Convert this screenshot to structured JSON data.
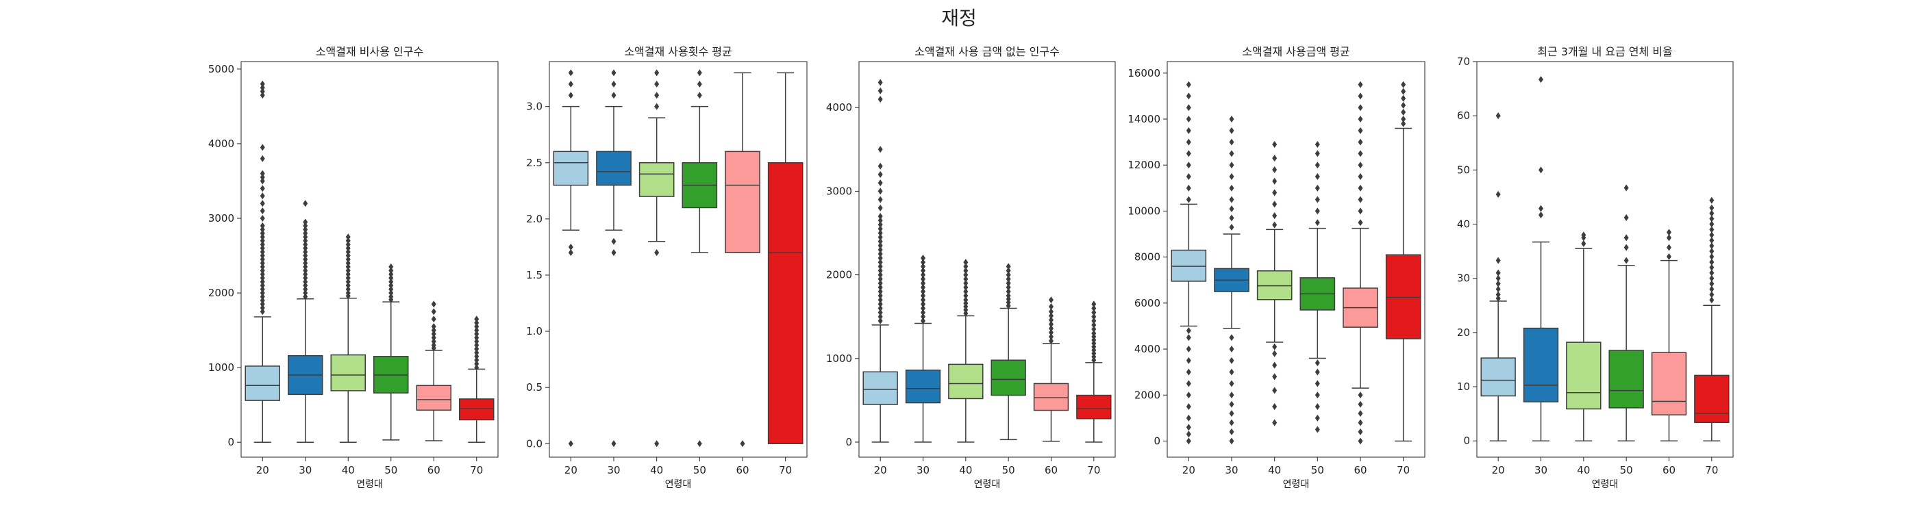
{
  "suptitle": "재정",
  "palette": [
    "#a6cee3",
    "#1f78b4",
    "#b2df8a",
    "#33a02c",
    "#fb9a99",
    "#e31a1c"
  ],
  "chart_data": [
    {
      "type": "box",
      "title": "소액결재 비사용 인구수",
      "xlabel": "연령대",
      "ylabel": "",
      "categories": [
        "20",
        "30",
        "40",
        "50",
        "60",
        "70"
      ],
      "ylim": [
        -200,
        5100
      ],
      "yticks": [
        0,
        1000,
        2000,
        3000,
        4000,
        5000
      ],
      "boxes": [
        {
          "whislo": 0,
          "q1": 560,
          "med": 760,
          "q3": 1020,
          "whishi": 1680,
          "fliers": [
            1750,
            1800,
            1850,
            1900,
            1950,
            2000,
            2050,
            2100,
            2150,
            2200,
            2250,
            2300,
            2350,
            2400,
            2450,
            2500,
            2550,
            2600,
            2650,
            2700,
            2750,
            2800,
            2850,
            2900,
            3000,
            3100,
            3200,
            3300,
            3400,
            3500,
            3550,
            3600,
            3800,
            3950,
            4650,
            4700,
            4750,
            4800
          ]
        },
        {
          "whislo": 0,
          "q1": 640,
          "med": 900,
          "q3": 1160,
          "whishi": 1920,
          "fliers": [
            1950,
            2000,
            2050,
            2100,
            2150,
            2200,
            2250,
            2300,
            2350,
            2400,
            2450,
            2500,
            2550,
            2600,
            2650,
            2700,
            2750,
            2800,
            2850,
            2900,
            2950,
            3200
          ]
        },
        {
          "whislo": 0,
          "q1": 690,
          "med": 900,
          "q3": 1170,
          "whishi": 1930,
          "fliers": [
            1960,
            2000,
            2050,
            2100,
            2150,
            2200,
            2250,
            2300,
            2350,
            2400,
            2450,
            2500,
            2550,
            2600,
            2650,
            2700,
            2750
          ]
        },
        {
          "whislo": 30,
          "q1": 660,
          "med": 900,
          "q3": 1150,
          "whishi": 1880,
          "fliers": [
            1910,
            1950,
            2000,
            2050,
            2100,
            2150,
            2200,
            2250,
            2300,
            2350
          ]
        },
        {
          "whislo": 20,
          "q1": 430,
          "med": 570,
          "q3": 760,
          "whishi": 1230,
          "fliers": [
            1260,
            1300,
            1350,
            1400,
            1450,
            1500,
            1550,
            1650,
            1750,
            1850
          ]
        },
        {
          "whislo": 0,
          "q1": 300,
          "med": 450,
          "q3": 580,
          "whishi": 980,
          "fliers": [
            1000,
            1050,
            1100,
            1150,
            1200,
            1250,
            1300,
            1350,
            1400,
            1450,
            1500,
            1550,
            1600,
            1650
          ]
        }
      ]
    },
    {
      "type": "box",
      "title": "소액결재 사용횟수 평균",
      "xlabel": "연령대",
      "ylabel": "",
      "categories": [
        "20",
        "30",
        "40",
        "50",
        "60",
        "70"
      ],
      "ylim": [
        -0.12,
        3.4
      ],
      "yticks": [
        "0.0",
        "0.5",
        "1.0",
        "1.5",
        "2.0",
        "2.5",
        "3.0"
      ],
      "boxes": [
        {
          "whislo": 1.9,
          "q1": 2.3,
          "med": 2.5,
          "q3": 2.6,
          "whishi": 3.0,
          "fliers": [
            0.0,
            1.7,
            1.75,
            3.1,
            3.2,
            3.3
          ]
        },
        {
          "whislo": 1.9,
          "q1": 2.3,
          "med": 2.42,
          "q3": 2.6,
          "whishi": 3.0,
          "fliers": [
            0.0,
            1.7,
            1.8,
            3.1,
            3.2,
            3.3
          ]
        },
        {
          "whislo": 1.8,
          "q1": 2.2,
          "med": 2.4,
          "q3": 2.5,
          "whishi": 2.9,
          "fliers": [
            0.0,
            1.7,
            3.0,
            3.1,
            3.2,
            3.3
          ]
        },
        {
          "whislo": 1.7,
          "q1": 2.1,
          "med": 2.3,
          "q3": 2.5,
          "whishi": 3.0,
          "fliers": [
            0.0,
            3.1,
            3.2,
            3.3
          ]
        },
        {
          "whislo": 1.7,
          "q1": 1.7,
          "med": 2.3,
          "q3": 2.6,
          "whishi": 3.3,
          "fliers": [
            0.0
          ]
        },
        {
          "whislo": 0.0,
          "q1": 0.0,
          "med": 1.7,
          "q3": 2.5,
          "whishi": 3.3,
          "fliers": []
        }
      ]
    },
    {
      "type": "box",
      "title": "소액결재 사용 금액 없는 인구수",
      "xlabel": "연령대",
      "ylabel": "",
      "categories": [
        "20",
        "30",
        "40",
        "50",
        "60",
        "70"
      ],
      "ylim": [
        -180,
        4550
      ],
      "yticks": [
        0,
        1000,
        2000,
        3000,
        4000
      ],
      "boxes": [
        {
          "whislo": 0,
          "q1": 450,
          "med": 630,
          "q3": 840,
          "whishi": 1400,
          "fliers": [
            1450,
            1500,
            1550,
            1600,
            1650,
            1700,
            1750,
            1800,
            1850,
            1900,
            1950,
            2000,
            2050,
            2100,
            2150,
            2200,
            2250,
            2300,
            2350,
            2400,
            2450,
            2500,
            2550,
            2600,
            2650,
            2700,
            2800,
            2900,
            3000,
            3100,
            3200,
            3300,
            3500,
            4100,
            4200,
            4300
          ]
        },
        {
          "whislo": 0,
          "q1": 470,
          "med": 640,
          "q3": 860,
          "whishi": 1420,
          "fliers": [
            1450,
            1500,
            1550,
            1600,
            1650,
            1700,
            1750,
            1800,
            1850,
            1900,
            1950,
            2000,
            2050,
            2100,
            2150,
            2200
          ]
        },
        {
          "whislo": 0,
          "q1": 520,
          "med": 700,
          "q3": 930,
          "whishi": 1510,
          "fliers": [
            1540,
            1580,
            1620,
            1660,
            1700,
            1750,
            1800,
            1850,
            1900,
            1950,
            2000,
            2050,
            2100,
            2150
          ]
        },
        {
          "whislo": 30,
          "q1": 560,
          "med": 750,
          "q3": 980,
          "whishi": 1600,
          "fliers": [
            1630,
            1670,
            1710,
            1750,
            1800,
            1850,
            1900,
            1950,
            2000,
            2050,
            2100
          ]
        },
        {
          "whislo": 10,
          "q1": 380,
          "med": 530,
          "q3": 700,
          "whishi": 1180,
          "fliers": [
            1210,
            1260,
            1310,
            1360,
            1410,
            1460,
            1510,
            1560,
            1620,
            1700
          ]
        },
        {
          "whislo": 0,
          "q1": 280,
          "med": 400,
          "q3": 560,
          "whishi": 950,
          "fliers": [
            980,
            1020,
            1060,
            1100,
            1140,
            1180,
            1220,
            1260,
            1300,
            1350,
            1400,
            1450,
            1500,
            1550,
            1600,
            1650
          ]
        }
      ]
    },
    {
      "type": "box",
      "title": "소액결재 사용금액 평균",
      "xlabel": "연령대",
      "ylabel": "",
      "categories": [
        "20",
        "30",
        "40",
        "50",
        "60",
        "70"
      ],
      "ylim": [
        -700,
        16500
      ],
      "yticks": [
        0,
        2000,
        4000,
        6000,
        8000,
        10000,
        12000,
        14000,
        16000
      ],
      "boxes": [
        {
          "whislo": 5000,
          "q1": 6950,
          "med": 7600,
          "q3": 8300,
          "whishi": 10300,
          "fliers": [
            0,
            300,
            600,
            1000,
            1500,
            2000,
            2500,
            3000,
            3500,
            4000,
            4500,
            4800,
            10500,
            11000,
            11500,
            12000,
            12500,
            13000,
            13500,
            14000,
            14500,
            15000,
            15500
          ]
        },
        {
          "whislo": 4900,
          "q1": 6500,
          "med": 7000,
          "q3": 7500,
          "whishi": 9000,
          "fliers": [
            0,
            400,
            800,
            1200,
            1600,
            2000,
            2500,
            3000,
            3500,
            4000,
            4500,
            9300,
            9700,
            10100,
            10500,
            11000,
            11500,
            12000,
            12500,
            13000,
            13500,
            14000
          ]
        },
        {
          "whislo": 4300,
          "q1": 6150,
          "med": 6750,
          "q3": 7400,
          "whishi": 9200,
          "fliers": [
            800,
            1500,
            2200,
            2800,
            3300,
            3800,
            4100,
            9400,
            9800,
            10300,
            10800,
            11300,
            11800,
            12300,
            12900
          ]
        },
        {
          "whislo": 3600,
          "q1": 5700,
          "med": 6400,
          "q3": 7100,
          "whishi": 9250,
          "fliers": [
            500,
            1000,
            1500,
            2000,
            2500,
            3000,
            3400,
            9500,
            10000,
            10500,
            11000,
            11500,
            12000,
            12500,
            12900
          ]
        },
        {
          "whislo": 2300,
          "q1": 4950,
          "med": 5800,
          "q3": 6650,
          "whishi": 9250,
          "fliers": [
            0,
            400,
            800,
            1200,
            1600,
            2000,
            9500,
            10000,
            10500,
            11000,
            11500,
            12000,
            12500,
            13000,
            13500,
            14000,
            14500,
            15000,
            15500
          ]
        },
        {
          "whislo": 0,
          "q1": 4450,
          "med": 6250,
          "q3": 8100,
          "whishi": 13600,
          "fliers": [
            13800,
            14000,
            14300,
            14600,
            14900,
            15200,
            15500
          ]
        }
      ]
    },
    {
      "type": "box",
      "title": "최근 3개월 내 요금 연체 비율",
      "xlabel": "연령대",
      "ylabel": "",
      "categories": [
        "20",
        "30",
        "40",
        "50",
        "60",
        "70"
      ],
      "ylim": [
        -3,
        70
      ],
      "yticks": [
        0,
        10,
        20,
        30,
        40,
        50,
        60,
        70
      ],
      "boxes": [
        {
          "whislo": 0,
          "q1": 8.3,
          "med": 11.2,
          "q3": 15.3,
          "whishi": 25.8,
          "fliers": [
            26.3,
            27,
            28,
            29,
            30,
            31,
            33.3,
            45.5,
            60
          ]
        },
        {
          "whislo": 0,
          "q1": 7.2,
          "med": 10.3,
          "q3": 20.8,
          "whishi": 36.7,
          "fliers": [
            41.7,
            42.9,
            50,
            66.7
          ]
        },
        {
          "whislo": 0,
          "q1": 5.9,
          "med": 8.9,
          "q3": 18.2,
          "whishi": 35.5,
          "fliers": [
            36.4,
            37.5,
            38
          ]
        },
        {
          "whislo": 0,
          "q1": 6.1,
          "med": 9.3,
          "q3": 16.7,
          "whishi": 32.4,
          "fliers": [
            33.3,
            35.7,
            37.5,
            41.2,
            46.7
          ]
        },
        {
          "whislo": 0,
          "q1": 4.8,
          "med": 7.3,
          "q3": 16.3,
          "whishi": 33.3,
          "fliers": [
            34,
            35.7,
            37.5,
            38.5
          ]
        },
        {
          "whislo": 0,
          "q1": 3.4,
          "med": 5.1,
          "q3": 12.1,
          "whishi": 25.0,
          "fliers": [
            26,
            27,
            28,
            29,
            30,
            31,
            32,
            33,
            34,
            35,
            36,
            37,
            38,
            39,
            40,
            41,
            42,
            43,
            44.4
          ]
        }
      ]
    }
  ]
}
